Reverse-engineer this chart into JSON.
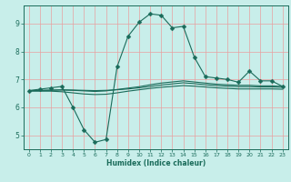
{
  "xlabel": "Humidex (Indice chaleur)",
  "bg_color": "#c8eeea",
  "line_color": "#1a6b5a",
  "grid_color": "#e8a0a0",
  "xlim": [
    -0.5,
    23.5
  ],
  "ylim": [
    4.5,
    9.65
  ],
  "xticks": [
    0,
    1,
    2,
    3,
    4,
    5,
    6,
    7,
    8,
    9,
    10,
    11,
    12,
    13,
    14,
    15,
    16,
    17,
    18,
    19,
    20,
    21,
    22,
    23
  ],
  "yticks": [
    5,
    6,
    7,
    8,
    9
  ],
  "line1": {
    "x": [
      0,
      1,
      2,
      3,
      4,
      5,
      6,
      7,
      8,
      9,
      10,
      11,
      12,
      13,
      14,
      15,
      16,
      17,
      18,
      19,
      20,
      21,
      22,
      23
    ],
    "y": [
      6.6,
      6.65,
      6.7,
      6.75,
      6.0,
      5.2,
      4.75,
      4.85,
      7.45,
      8.55,
      9.05,
      9.35,
      9.3,
      8.85,
      8.9,
      7.8,
      7.1,
      7.05,
      7.0,
      6.9,
      7.3,
      6.95,
      6.95,
      6.75
    ]
  },
  "line2": {
    "x": [
      0,
      1,
      2,
      3,
      4,
      5,
      6,
      7,
      8,
      9,
      10,
      11,
      12,
      13,
      14,
      15,
      16,
      17,
      18,
      19,
      20,
      21,
      22,
      23
    ],
    "y": [
      6.58,
      6.58,
      6.58,
      6.56,
      6.52,
      6.48,
      6.46,
      6.47,
      6.52,
      6.58,
      6.63,
      6.68,
      6.72,
      6.75,
      6.78,
      6.76,
      6.73,
      6.7,
      6.68,
      6.66,
      6.66,
      6.66,
      6.66,
      6.65
    ]
  },
  "line3": {
    "x": [
      0,
      1,
      2,
      3,
      4,
      5,
      6,
      7,
      8,
      9,
      10,
      11,
      12,
      13,
      14,
      15,
      16,
      17,
      18,
      19,
      20,
      21,
      22,
      23
    ],
    "y": [
      6.6,
      6.6,
      6.61,
      6.62,
      6.61,
      6.59,
      6.57,
      6.59,
      6.64,
      6.69,
      6.74,
      6.81,
      6.87,
      6.91,
      6.95,
      6.91,
      6.87,
      6.83,
      6.81,
      6.79,
      6.79,
      6.77,
      6.77,
      6.75
    ]
  },
  "line4": {
    "x": [
      0,
      1,
      2,
      3,
      4,
      5,
      6,
      7,
      8,
      9,
      10,
      11,
      12,
      13,
      14,
      15,
      16,
      17,
      18,
      19,
      20,
      21,
      22,
      23
    ],
    "y": [
      6.6,
      6.61,
      6.62,
      6.63,
      6.62,
      6.61,
      6.6,
      6.61,
      6.63,
      6.66,
      6.7,
      6.75,
      6.8,
      6.84,
      6.88,
      6.85,
      6.81,
      6.78,
      6.76,
      6.74,
      6.74,
      6.73,
      6.73,
      6.72
    ]
  }
}
